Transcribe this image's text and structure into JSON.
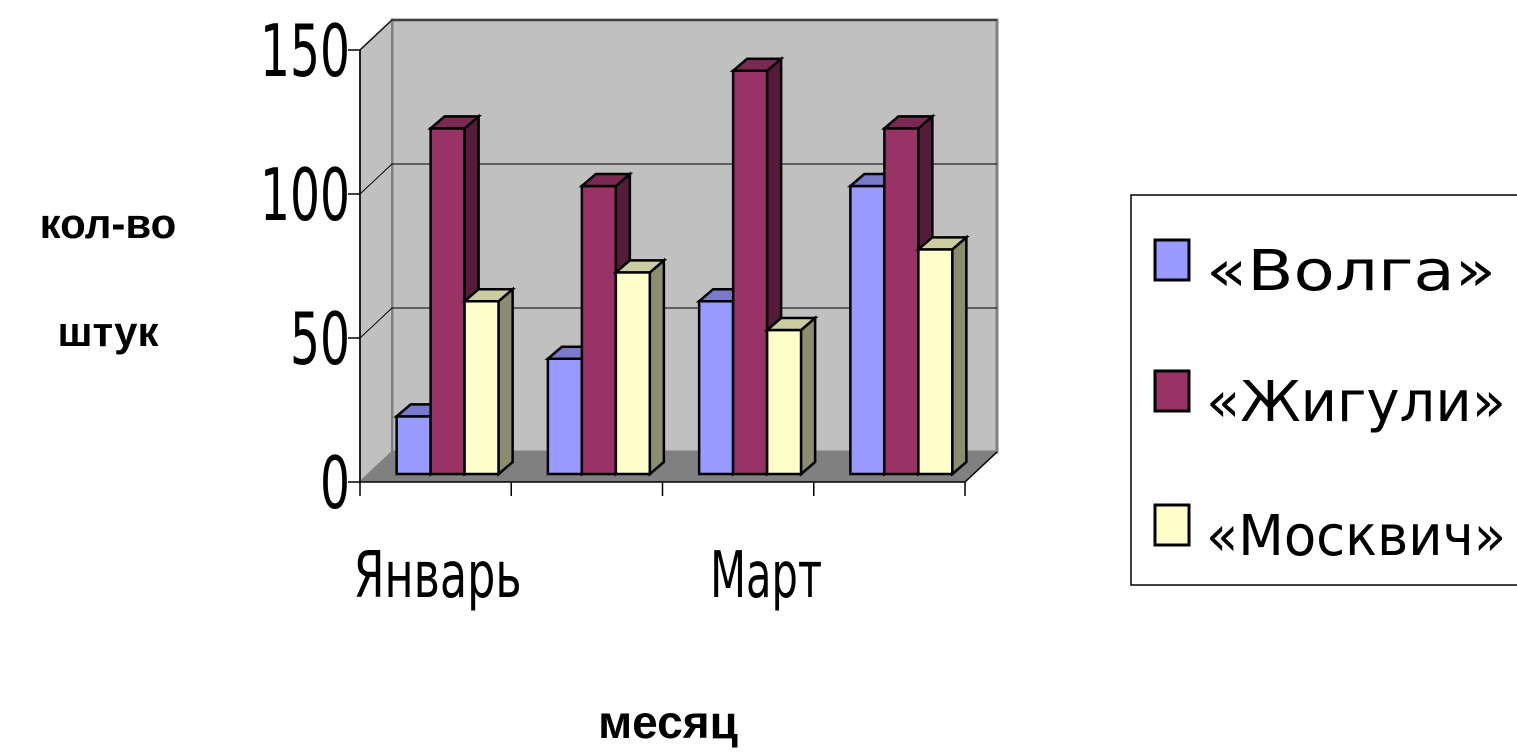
{
  "chart_data": {
    "type": "bar",
    "categories": [
      "Январь",
      "",
      "Март",
      ""
    ],
    "series": [
      {
        "name": "«Волга»",
        "values": [
          20,
          40,
          60,
          100
        ],
        "color": "#9999ff"
      },
      {
        "name": "«Жигули»",
        "values": [
          120,
          100,
          140,
          120
        ],
        "color": "#993366"
      },
      {
        "name": "«Москвич»",
        "values": [
          60,
          70,
          50,
          78
        ],
        "color": "#ffffcc"
      }
    ],
    "xlabel": "месяц",
    "ylabel_lines": [
      "кол-во",
      "штук"
    ],
    "ylim": [
      0,
      150
    ],
    "yticks": [
      "0",
      "50",
      "100",
      "150"
    ],
    "grid": true,
    "legend": "right",
    "style": "3d-column",
    "colors": {
      "wall": "#c0c0c0",
      "floor": "#808080",
      "gridline": "#000000"
    }
  }
}
